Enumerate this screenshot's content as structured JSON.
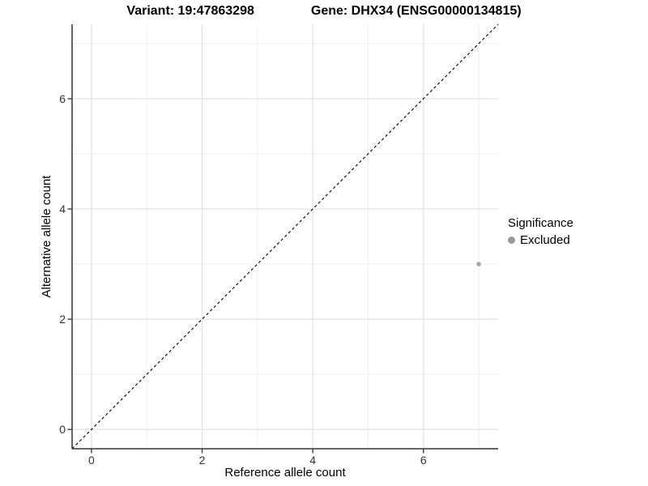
{
  "titles": {
    "variant": "Variant: 19:47863298",
    "gene": "Gene: DHX34 (ENSG00000134815)"
  },
  "legend": {
    "title": "Significance",
    "items": [
      {
        "label": "Excluded",
        "color": "#999999"
      }
    ]
  },
  "chart_data": {
    "type": "scatter",
    "title": "Variant: 19:47863298   Gene: DHX34 (ENSG00000134815)",
    "xlabel": "Reference allele count",
    "ylabel": "Alternative allele count",
    "xlim": [
      -0.35,
      7.35
    ],
    "ylim": [
      -0.35,
      7.35
    ],
    "x_ticks": [
      0,
      2,
      4,
      6
    ],
    "y_ticks": [
      0,
      2,
      4,
      6
    ],
    "x_minor_ticks": [
      1,
      3,
      5,
      7
    ],
    "y_minor_ticks": [
      1,
      3,
      5,
      7
    ],
    "grid": true,
    "legend_position": "right",
    "series": [
      {
        "name": "Excluded",
        "color": "#a8a8a8",
        "points": [
          {
            "x": 7,
            "y": 3
          }
        ]
      }
    ],
    "reference_line": {
      "type": "identity",
      "slope": 1,
      "intercept": 0,
      "style": "dashed",
      "color": "#000000"
    },
    "colors": {
      "axis_line": "#333333",
      "tick_label": "#333333",
      "grid_major": "#e4e4e4",
      "grid_minor": "#f0f0f0",
      "panel_background": "#ffffff"
    }
  }
}
